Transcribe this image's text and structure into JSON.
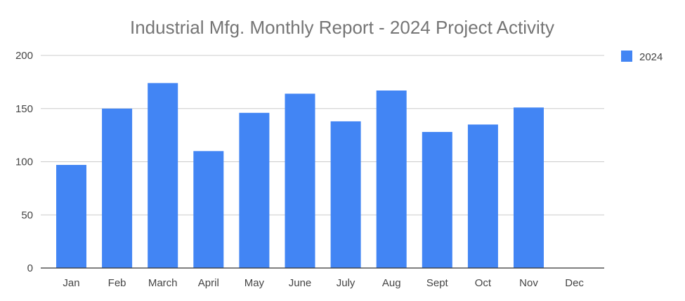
{
  "chart_data": {
    "type": "bar",
    "title": "Industrial Mfg. Monthly Report - 2024 Project Activity",
    "xlabel": "",
    "ylabel": "",
    "categories": [
      "Jan",
      "Feb",
      "March",
      "April",
      "May",
      "June",
      "July",
      "Aug",
      "Sept",
      "Oct",
      "Nov",
      "Dec"
    ],
    "series": [
      {
        "name": "2024",
        "color": "#4285f4",
        "values": [
          97,
          150,
          174,
          110,
          146,
          164,
          138,
          167,
          128,
          135,
          151,
          0
        ]
      }
    ],
    "ylim": [
      0,
      200
    ],
    "yticks": [
      0,
      50,
      100,
      150,
      200
    ],
    "grid": true,
    "legend_position": "right"
  }
}
